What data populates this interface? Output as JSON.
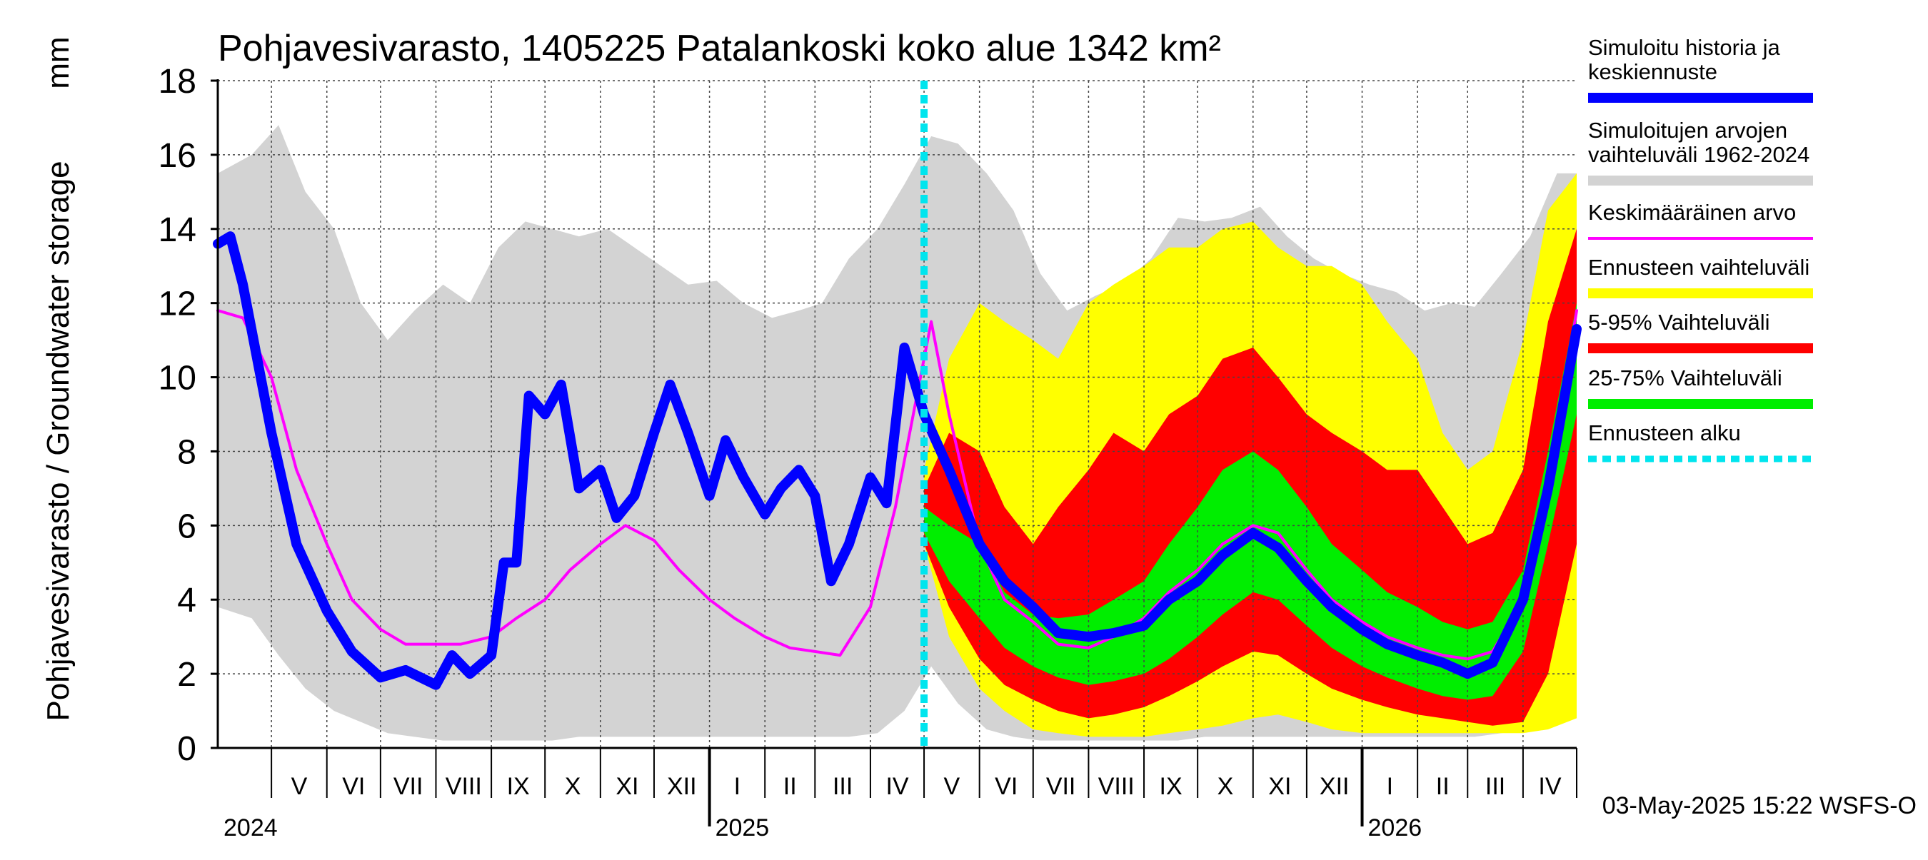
{
  "chart_data": {
    "type": "area",
    "title": "Pohjavesivarasto, 1405225 Patalankoski koko alue 1342 km²",
    "ylabel": "Pohjavesivarasto / Groundwater storage",
    "yunit": "mm",
    "ylim": [
      0,
      18
    ],
    "yticks": [
      "0",
      "2",
      "4",
      "6",
      "8",
      "10",
      "12",
      "14",
      "16",
      "18"
    ],
    "xlim": [
      "2024-04-01",
      "2026-05-01"
    ],
    "months": [
      {
        "label": "V",
        "start": "2024-05-01",
        "end": "2024-06-01"
      },
      {
        "label": "VI",
        "start": "2024-06-01",
        "end": "2024-07-01"
      },
      {
        "label": "VII",
        "start": "2024-07-01",
        "end": "2024-08-01"
      },
      {
        "label": "VIII",
        "start": "2024-08-01",
        "end": "2024-09-01"
      },
      {
        "label": "IX",
        "start": "2024-09-01",
        "end": "2024-10-01"
      },
      {
        "label": "X",
        "start": "2024-10-01",
        "end": "2024-11-01"
      },
      {
        "label": "XI",
        "start": "2024-11-01",
        "end": "2024-12-01"
      },
      {
        "label": "XII",
        "start": "2024-12-01",
        "end": "2025-01-01"
      },
      {
        "label": "I",
        "start": "2025-01-01",
        "end": "2025-02-01"
      },
      {
        "label": "II",
        "start": "2025-02-01",
        "end": "2025-03-01"
      },
      {
        "label": "III",
        "start": "2025-03-01",
        "end": "2025-04-01"
      },
      {
        "label": "IV",
        "start": "2025-04-01",
        "end": "2025-05-01"
      },
      {
        "label": "V",
        "start": "2025-05-01",
        "end": "2025-06-01"
      },
      {
        "label": "VI",
        "start": "2025-06-01",
        "end": "2025-07-01"
      },
      {
        "label": "VII",
        "start": "2025-07-01",
        "end": "2025-08-01"
      },
      {
        "label": "VIII",
        "start": "2025-08-01",
        "end": "2025-09-01"
      },
      {
        "label": "IX",
        "start": "2025-09-01",
        "end": "2025-10-01"
      },
      {
        "label": "X",
        "start": "2025-10-01",
        "end": "2025-11-01"
      },
      {
        "label": "XI",
        "start": "2025-11-01",
        "end": "2025-12-01"
      },
      {
        "label": "XII",
        "start": "2025-12-01",
        "end": "2026-01-01"
      },
      {
        "label": "I",
        "start": "2026-01-01",
        "end": "2026-02-01"
      },
      {
        "label": "II",
        "start": "2026-02-01",
        "end": "2026-03-01"
      },
      {
        "label": "III",
        "start": "2026-03-01",
        "end": "2026-04-01"
      },
      {
        "label": "IV",
        "start": "2026-04-01",
        "end": "2026-05-01"
      }
    ],
    "years": [
      {
        "label": "2024",
        "date": "2024-04-01"
      },
      {
        "label": "2025",
        "date": "2025-01-01"
      },
      {
        "label": "2026",
        "date": "2026-01-01"
      }
    ],
    "forecast_start": "2025-05-01",
    "timestamp": "03-May-2025 15:22 WSFS-O",
    "legend": [
      {
        "label": "Simuloitu historia ja keskiennuste",
        "color": "#0000ff",
        "style": "thick"
      },
      {
        "label": "Simuloitujen arvojen vaihteluväli 1962-2024",
        "color": "#d3d3d3",
        "style": "thick"
      },
      {
        "label": "Keskimääräinen arvo",
        "color": "#ff00ff",
        "style": "thin"
      },
      {
        "label": "Ennusteen vaihteluväli",
        "color": "#ffff00",
        "style": "thick"
      },
      {
        "label": "5-95% Vaihteluväli",
        "color": "#ff0000",
        "style": "thick"
      },
      {
        "label": "25-75% Vaihteluväli",
        "color": "#00ee00",
        "style": "thick"
      },
      {
        "label": "Ennusteen alku",
        "color": "#00e5ee",
        "style": "dashed"
      }
    ],
    "series": [
      {
        "name": "Simuloitujen arvojen vaihteluväli 1962-2024",
        "kind": "band",
        "color": "#d3d3d3",
        "x": [
          "2024-04-01",
          "2024-04-20",
          "2024-05-05",
          "2024-05-20",
          "2024-06-05",
          "2024-06-20",
          "2024-07-05",
          "2024-07-20",
          "2024-08-05",
          "2024-08-20",
          "2024-09-05",
          "2024-09-20",
          "2024-10-05",
          "2024-10-20",
          "2024-11-05",
          "2024-11-20",
          "2024-12-05",
          "2024-12-20",
          "2025-01-05",
          "2025-01-20",
          "2025-02-05",
          "2025-02-20",
          "2025-03-05",
          "2025-03-20",
          "2025-04-05",
          "2025-04-20",
          "2025-05-05",
          "2025-05-20",
          "2025-06-05",
          "2025-06-20",
          "2025-07-05",
          "2025-07-20",
          "2025-08-05",
          "2025-08-20",
          "2025-09-05",
          "2025-09-20",
          "2025-10-05",
          "2025-10-20",
          "2025-11-05",
          "2025-11-20",
          "2025-12-05",
          "2025-12-20",
          "2026-01-05",
          "2026-01-20",
          "2026-02-05",
          "2026-02-20",
          "2026-03-05",
          "2026-03-20",
          "2026-04-05",
          "2026-04-20",
          "2026-05-01"
        ],
        "low": [
          3.8,
          3.5,
          2.5,
          1.6,
          1.0,
          0.7,
          0.4,
          0.3,
          0.2,
          0.2,
          0.2,
          0.2,
          0.2,
          0.3,
          0.3,
          0.3,
          0.3,
          0.3,
          0.3,
          0.3,
          0.3,
          0.3,
          0.3,
          0.3,
          0.4,
          1.0,
          2.2,
          1.2,
          0.5,
          0.3,
          0.2,
          0.2,
          0.2,
          0.2,
          0.2,
          0.2,
          0.3,
          0.3,
          0.3,
          0.3,
          0.3,
          0.3,
          0.3,
          0.3,
          0.3,
          0.3,
          0.3,
          0.4,
          0.5,
          1.5,
          3.5
        ],
        "high": [
          15.5,
          16.0,
          16.8,
          15.0,
          14.0,
          12.0,
          11.0,
          11.8,
          12.5,
          12.0,
          13.5,
          14.2,
          14.0,
          13.8,
          14.0,
          13.5,
          13.0,
          12.5,
          12.6,
          12.0,
          11.6,
          11.8,
          12.0,
          13.2,
          14.0,
          15.2,
          16.5,
          16.3,
          15.5,
          14.5,
          12.8,
          11.8,
          12.2,
          12.5,
          13.2,
          14.3,
          14.2,
          14.3,
          14.6,
          13.8,
          13.2,
          12.8,
          12.5,
          12.3,
          11.8,
          12.0,
          11.9,
          12.8,
          13.8,
          15.5,
          15.5
        ]
      },
      {
        "name": "Ennusteen vaihteluväli",
        "kind": "band",
        "color": "#ffff00",
        "x": [
          "2025-05-01",
          "2025-05-15",
          "2025-06-01",
          "2025-06-15",
          "2025-07-01",
          "2025-07-15",
          "2025-08-01",
          "2025-08-15",
          "2025-09-01",
          "2025-09-15",
          "2025-10-01",
          "2025-10-15",
          "2025-11-01",
          "2025-11-15",
          "2025-12-01",
          "2025-12-15",
          "2026-01-01",
          "2026-01-15",
          "2026-02-01",
          "2026-02-15",
          "2026-03-01",
          "2026-03-15",
          "2026-04-01",
          "2026-04-15",
          "2026-05-01"
        ],
        "low": [
          5.5,
          3.0,
          1.6,
          1.0,
          0.5,
          0.4,
          0.3,
          0.3,
          0.3,
          0.4,
          0.5,
          0.6,
          0.8,
          0.9,
          0.7,
          0.5,
          0.4,
          0.4,
          0.4,
          0.4,
          0.4,
          0.4,
          0.4,
          0.5,
          0.8
        ],
        "high": [
          7.5,
          10.5,
          12.0,
          11.5,
          11.0,
          10.5,
          12.0,
          12.5,
          13.0,
          13.5,
          13.5,
          14.0,
          14.2,
          13.5,
          13.0,
          13.0,
          12.5,
          11.5,
          10.5,
          8.5,
          7.5,
          8.0,
          11.0,
          14.5,
          15.5
        ]
      },
      {
        "name": "5-95% Vaihteluväli",
        "kind": "band",
        "color": "#ff0000",
        "x": [
          "2025-05-01",
          "2025-05-15",
          "2025-06-01",
          "2025-06-15",
          "2025-07-01",
          "2025-07-15",
          "2025-08-01",
          "2025-08-15",
          "2025-09-01",
          "2025-09-15",
          "2025-10-01",
          "2025-10-15",
          "2025-11-01",
          "2025-11-15",
          "2025-12-01",
          "2025-12-15",
          "2026-01-01",
          "2026-01-15",
          "2026-02-01",
          "2026-02-15",
          "2026-03-01",
          "2026-03-15",
          "2026-04-01",
          "2026-04-15",
          "2026-05-01"
        ],
        "low": [
          5.5,
          3.8,
          2.4,
          1.7,
          1.3,
          1.0,
          0.8,
          0.9,
          1.1,
          1.4,
          1.8,
          2.2,
          2.6,
          2.5,
          2.0,
          1.6,
          1.3,
          1.1,
          0.9,
          0.8,
          0.7,
          0.6,
          0.7,
          2.0,
          5.5
        ],
        "high": [
          7.0,
          8.5,
          8.0,
          6.5,
          5.5,
          6.5,
          7.5,
          8.5,
          8.0,
          9.0,
          9.5,
          10.5,
          10.8,
          10.0,
          9.0,
          8.5,
          8.0,
          7.5,
          7.5,
          6.5,
          5.5,
          5.8,
          7.5,
          11.5,
          14.0
        ]
      },
      {
        "name": "25-75% Vaihteluväli",
        "kind": "band",
        "color": "#00ee00",
        "x": [
          "2025-05-01",
          "2025-05-15",
          "2025-06-01",
          "2025-06-15",
          "2025-07-01",
          "2025-07-15",
          "2025-08-01",
          "2025-08-15",
          "2025-09-01",
          "2025-09-15",
          "2025-10-01",
          "2025-10-15",
          "2025-11-01",
          "2025-11-15",
          "2025-12-01",
          "2025-12-15",
          "2026-01-01",
          "2026-01-15",
          "2026-02-01",
          "2026-02-15",
          "2026-03-01",
          "2026-03-15",
          "2026-04-01",
          "2026-04-15",
          "2026-05-01"
        ],
        "low": [
          5.8,
          4.5,
          3.5,
          2.7,
          2.2,
          1.9,
          1.7,
          1.8,
          2.0,
          2.4,
          3.0,
          3.6,
          4.2,
          4.0,
          3.3,
          2.7,
          2.2,
          1.9,
          1.6,
          1.4,
          1.3,
          1.4,
          2.6,
          5.5,
          9.0
        ],
        "high": [
          6.5,
          6.0,
          5.5,
          4.2,
          3.6,
          3.5,
          3.6,
          4.0,
          4.5,
          5.5,
          6.5,
          7.5,
          8.0,
          7.5,
          6.5,
          5.5,
          4.8,
          4.2,
          3.8,
          3.4,
          3.2,
          3.4,
          4.8,
          8.0,
          12.0
        ]
      },
      {
        "name": "Keskimääräinen arvo",
        "kind": "line",
        "color": "#ff00ff",
        "x": [
          "2024-04-01",
          "2024-04-15",
          "2024-05-01",
          "2024-05-15",
          "2024-06-01",
          "2024-06-15",
          "2024-07-01",
          "2024-07-15",
          "2024-08-01",
          "2024-08-15",
          "2024-09-01",
          "2024-09-15",
          "2024-10-01",
          "2024-10-15",
          "2024-11-01",
          "2024-11-15",
          "2024-12-01",
          "2024-12-15",
          "2025-01-01",
          "2025-01-15",
          "2025-02-01",
          "2025-02-15",
          "2025-03-01",
          "2025-03-15",
          "2025-04-01",
          "2025-04-15",
          "2025-04-25",
          "2025-05-05",
          "2025-05-15",
          "2025-06-01",
          "2025-06-15",
          "2025-07-01",
          "2025-07-15",
          "2025-08-01",
          "2025-08-15",
          "2025-09-01",
          "2025-09-15",
          "2025-10-01",
          "2025-10-15",
          "2025-11-01",
          "2025-11-15",
          "2025-12-01",
          "2025-12-15",
          "2026-01-01",
          "2026-01-15",
          "2026-02-01",
          "2026-02-15",
          "2026-03-01",
          "2026-03-15",
          "2026-04-01",
          "2026-04-15",
          "2026-05-01"
        ],
        "y": [
          11.8,
          11.6,
          10.0,
          7.5,
          5.5,
          4.0,
          3.2,
          2.8,
          2.8,
          2.8,
          3.0,
          3.5,
          4.0,
          4.8,
          5.5,
          6.0,
          5.6,
          4.8,
          4.0,
          3.5,
          3.0,
          2.7,
          2.6,
          2.5,
          3.8,
          6.5,
          9.0,
          11.5,
          9.0,
          5.5,
          4.0,
          3.4,
          2.8,
          2.7,
          3.0,
          3.5,
          4.2,
          4.8,
          5.5,
          6.0,
          5.8,
          4.8,
          4.0,
          3.4,
          3.0,
          2.7,
          2.5,
          2.4,
          2.6,
          4.0,
          7.0,
          11.8
        ]
      },
      {
        "name": "Simuloitu historia ja keskiennuste",
        "kind": "line",
        "color": "#0000ff",
        "x": [
          "2024-04-01",
          "2024-04-08",
          "2024-04-15",
          "2024-05-01",
          "2024-05-15",
          "2024-06-01",
          "2024-06-15",
          "2024-07-01",
          "2024-07-15",
          "2024-08-01",
          "2024-08-10",
          "2024-08-20",
          "2024-09-01",
          "2024-09-08",
          "2024-09-15",
          "2024-09-22",
          "2024-10-01",
          "2024-10-10",
          "2024-10-20",
          "2024-11-01",
          "2024-11-10",
          "2024-11-20",
          "2024-12-01",
          "2024-12-10",
          "2024-12-20",
          "2025-01-01",
          "2025-01-10",
          "2025-01-20",
          "2025-02-01",
          "2025-02-10",
          "2025-02-20",
          "2025-03-01",
          "2025-03-10",
          "2025-03-20",
          "2025-04-01",
          "2025-04-10",
          "2025-04-20",
          "2025-05-01",
          "2025-05-15",
          "2025-06-01",
          "2025-06-15",
          "2025-07-01",
          "2025-07-15",
          "2025-08-01",
          "2025-08-15",
          "2025-09-01",
          "2025-09-15",
          "2025-10-01",
          "2025-10-15",
          "2025-11-01",
          "2025-11-15",
          "2025-12-01",
          "2025-12-15",
          "2026-01-01",
          "2026-01-15",
          "2026-02-01",
          "2026-02-15",
          "2026-03-01",
          "2026-03-15",
          "2026-04-01",
          "2026-04-15",
          "2026-05-01"
        ],
        "y": [
          13.6,
          13.8,
          12.5,
          8.5,
          5.5,
          3.7,
          2.6,
          1.9,
          2.1,
          1.7,
          2.5,
          2.0,
          2.5,
          5.0,
          5.0,
          9.5,
          9.0,
          9.8,
          7.0,
          7.5,
          6.2,
          6.8,
          8.5,
          9.8,
          8.5,
          6.8,
          8.3,
          7.3,
          6.3,
          7.0,
          7.5,
          6.8,
          4.5,
          5.5,
          7.3,
          6.6,
          10.8,
          9.0,
          7.5,
          5.5,
          4.5,
          3.8,
          3.1,
          3.0,
          3.1,
          3.3,
          4.0,
          4.5,
          5.2,
          5.8,
          5.4,
          4.5,
          3.8,
          3.2,
          2.8,
          2.5,
          2.3,
          2.0,
          2.3,
          4.0,
          7.0,
          11.3
        ]
      }
    ]
  }
}
